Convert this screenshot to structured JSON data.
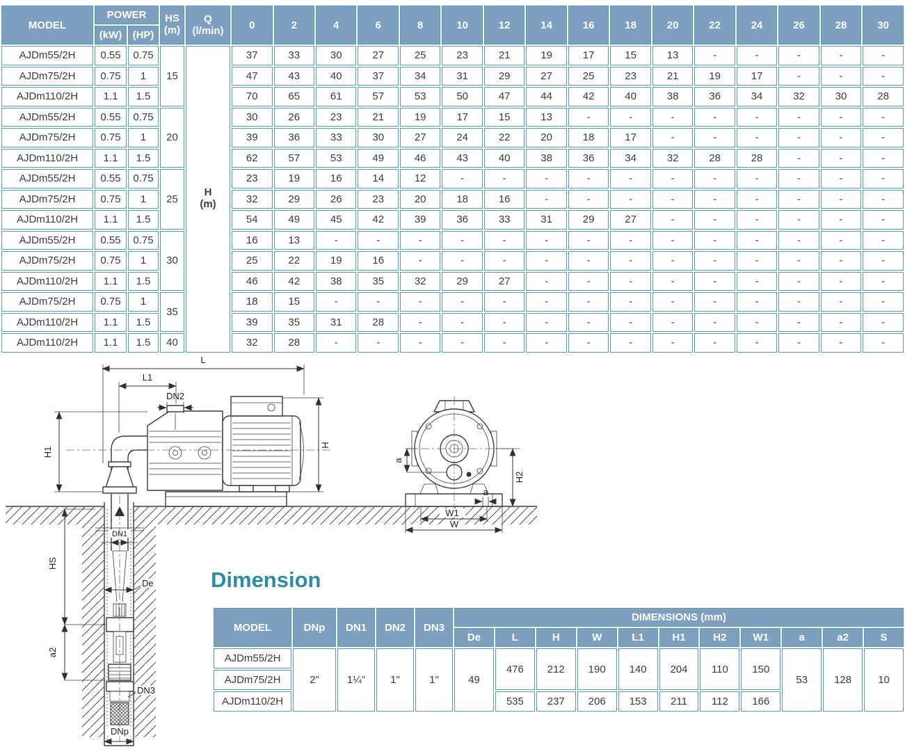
{
  "colors": {
    "header_bg": "#7E9FBF",
    "table_border": "#4E9CBC",
    "section_heading": "#2B8CA9",
    "body_text": "#3A3A3A"
  },
  "performance_table": {
    "headers": {
      "model": "MODEL",
      "power": "POWER",
      "kw": "(kW)",
      "hp": "(HP)",
      "hs": "HS\n(m)",
      "q": "Q (l/min)",
      "flow_columns": [
        "0",
        "2",
        "4",
        "6",
        "8",
        "10",
        "12",
        "14",
        "16",
        "18",
        "20",
        "22",
        "24",
        "26",
        "28",
        "30"
      ]
    },
    "h_column_label": "H\n(m)",
    "hs_groups": [
      {
        "value": "15",
        "span": 3
      },
      {
        "value": "20",
        "span": 3
      },
      {
        "value": "25",
        "span": 3
      },
      {
        "value": "30",
        "span": 3
      },
      {
        "value": "35",
        "span": 2
      },
      {
        "value": "40",
        "span": 1
      }
    ],
    "rows": [
      {
        "model": "AJDm55/2H",
        "kw": "0.55",
        "hp": "0.75",
        "values": [
          "37",
          "33",
          "30",
          "27",
          "25",
          "23",
          "21",
          "19",
          "17",
          "15",
          "13",
          "-",
          "-",
          "-",
          "-",
          "-"
        ]
      },
      {
        "model": "AJDm75/2H",
        "kw": "0.75",
        "hp": "1",
        "values": [
          "47",
          "43",
          "40",
          "37",
          "34",
          "31",
          "29",
          "27",
          "25",
          "23",
          "21",
          "19",
          "17",
          "-",
          "-",
          "-"
        ]
      },
      {
        "model": "AJDm110/2H",
        "kw": "1.1",
        "hp": "1.5",
        "values": [
          "70",
          "65",
          "61",
          "57",
          "53",
          "50",
          "47",
          "44",
          "42",
          "40",
          "38",
          "36",
          "34",
          "32",
          "30",
          "28"
        ]
      },
      {
        "model": "AJDm55/2H",
        "kw": "0.55",
        "hp": "0.75",
        "values": [
          "30",
          "26",
          "23",
          "21",
          "19",
          "17",
          "15",
          "13",
          "-",
          "-",
          "-",
          "-",
          "-",
          "-",
          "-",
          "-"
        ]
      },
      {
        "model": "AJDm75/2H",
        "kw": "0.75",
        "hp": "1",
        "values": [
          "39",
          "36",
          "33",
          "30",
          "27",
          "24",
          "22",
          "20",
          "18",
          "17",
          "-",
          "-",
          "-",
          "-",
          "-",
          "-"
        ]
      },
      {
        "model": "AJDm110/2H",
        "kw": "1.1",
        "hp": "1.5",
        "values": [
          "62",
          "57",
          "53",
          "49",
          "46",
          "43",
          "40",
          "38",
          "36",
          "34",
          "32",
          "28",
          "28",
          "-",
          "-",
          "-"
        ]
      },
      {
        "model": "AJDm55/2H",
        "kw": "0.55",
        "hp": "0.75",
        "values": [
          "23",
          "19",
          "16",
          "14",
          "12",
          "-",
          "-",
          "-",
          "-",
          "-",
          "-",
          "-",
          "-",
          "-",
          "-",
          "-"
        ]
      },
      {
        "model": "AJDm75/2H",
        "kw": "0.75",
        "hp": "1",
        "values": [
          "32",
          "29",
          "26",
          "23",
          "20",
          "18",
          "16",
          "-",
          "-",
          "-",
          "-",
          "-",
          "-",
          "-",
          "-",
          "-"
        ]
      },
      {
        "model": "AJDm110/2H",
        "kw": "1.1",
        "hp": "1.5",
        "values": [
          "54",
          "49",
          "45",
          "42",
          "39",
          "36",
          "33",
          "31",
          "29",
          "27",
          "-",
          "-",
          "-",
          "-",
          "-",
          "-"
        ]
      },
      {
        "model": "AJDm55/2H",
        "kw": "0.55",
        "hp": "0.75",
        "values": [
          "16",
          "13",
          "-",
          "-",
          "-",
          "-",
          "-",
          "-",
          "-",
          "-",
          "-",
          "-",
          "-",
          "-",
          "-",
          "-"
        ]
      },
      {
        "model": "AJDm75/2H",
        "kw": "0.75",
        "hp": "1",
        "values": [
          "25",
          "22",
          "19",
          "16",
          "-",
          "-",
          "-",
          "-",
          "-",
          "-",
          "-",
          "-",
          "-",
          "-",
          "-",
          "-"
        ]
      },
      {
        "model": "AJDm110/2H",
        "kw": "1.1",
        "hp": "1.5",
        "values": [
          "46",
          "42",
          "38",
          "35",
          "32",
          "29",
          "27",
          "-",
          "-",
          "-",
          "-",
          "-",
          "-",
          "-",
          "-",
          "-"
        ]
      },
      {
        "model": "AJDm75/2H",
        "kw": "0.75",
        "hp": "1",
        "values": [
          "18",
          "15",
          "-",
          "-",
          "-",
          "-",
          "-",
          "-",
          "-",
          "-",
          "-",
          "-",
          "-",
          "-",
          "-",
          "-"
        ]
      },
      {
        "model": "AJDm110/2H",
        "kw": "1.1",
        "hp": "1.5",
        "values": [
          "39",
          "35",
          "31",
          "28",
          "-",
          "-",
          "-",
          "-",
          "-",
          "-",
          "-",
          "-",
          "-",
          "-",
          "-",
          "-"
        ]
      },
      {
        "model": "AJDm110/2H",
        "kw": "1.1",
        "hp": "1.5",
        "values": [
          "32",
          "28",
          "-",
          "-",
          "-",
          "-",
          "-",
          "-",
          "-",
          "-",
          "-",
          "-",
          "-",
          "-",
          "-",
          "-"
        ]
      }
    ]
  },
  "drawing": {
    "labels": {
      "l": "L",
      "l1": "L1",
      "dn2": "DN2",
      "h1": "H1",
      "h": "H",
      "hs": "HS",
      "dn1": "DN1",
      "de": "De",
      "a2": "a2",
      "dn3": "DN3",
      "dnp": "DNp",
      "a_side": "a",
      "h2": "H2",
      "a_base": "a",
      "w1": "W1",
      "w": "W"
    }
  },
  "dimension_section": {
    "title": "Dimension"
  },
  "dimension_table": {
    "header": {
      "model": "MODEL",
      "dnp": "DNp",
      "dn1": "DN1",
      "dn2": "DN2",
      "dn3": "DN3",
      "dims_group": "DIMENSIONS (mm)",
      "sub": [
        "De",
        "L",
        "H",
        "W",
        "L1",
        "H1",
        "H2",
        "W1",
        "a",
        "a2",
        "S"
      ]
    },
    "models": [
      "AJDm55/2H",
      "AJDm75/2H",
      "AJDm110/2H"
    ],
    "shared": {
      "dnp": "2\"",
      "dn1": "1¼\"",
      "dn2": "1\"",
      "dn3": "1\"",
      "de": "49",
      "a": "53",
      "a2": "128",
      "s": "10"
    },
    "group_small": {
      "l": "476",
      "h": "212",
      "w": "190",
      "l1": "140",
      "h1": "204",
      "h2": "110",
      "w1": "150"
    },
    "row_110": {
      "l": "535",
      "h": "237",
      "w": "206",
      "l1": "153",
      "h1": "211",
      "h2": "112",
      "w1": "166"
    }
  }
}
